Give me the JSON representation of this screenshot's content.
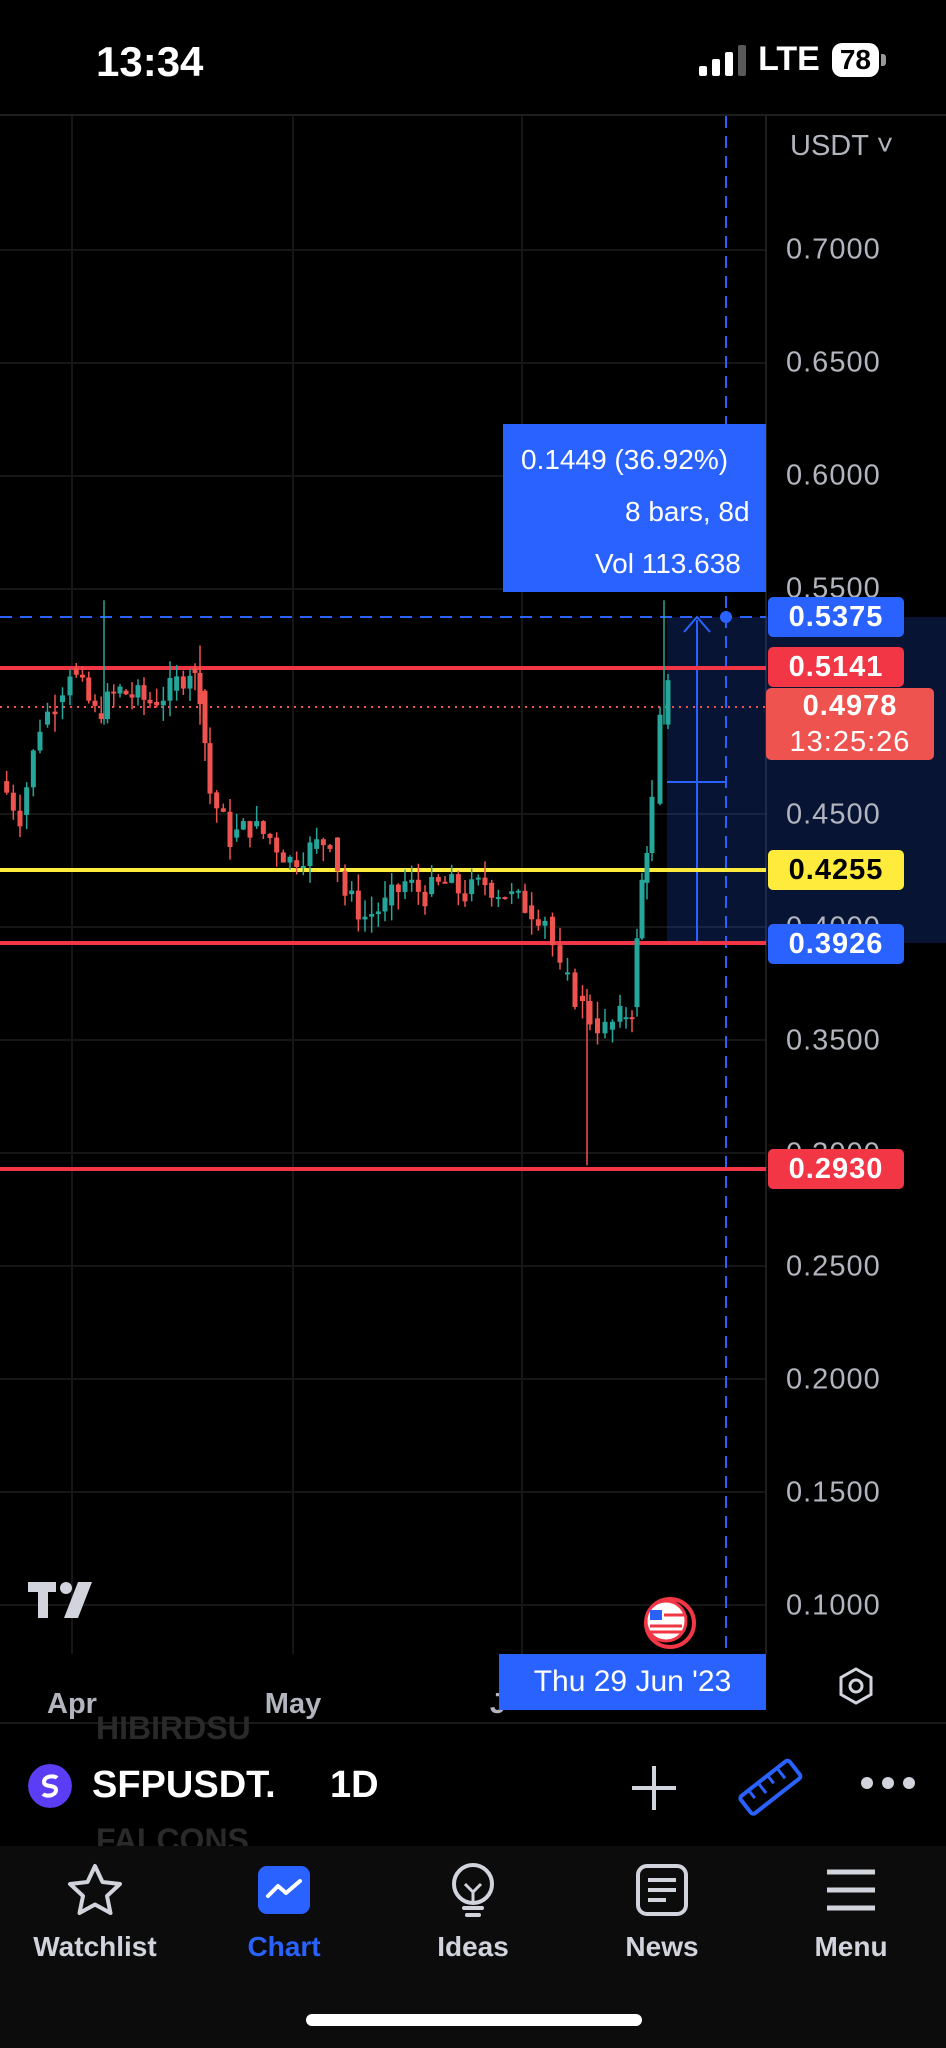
{
  "status_bar": {
    "time": "13:34",
    "network": "LTE",
    "battery": "78"
  },
  "chart": {
    "currency": "USDT",
    "price_axis": [
      "0.7000",
      "0.6500",
      "0.6000",
      "0.5500",
      "0.4500",
      "0.4000",
      "0.3500",
      "0.3000",
      "0.2500",
      "0.2000",
      "0.1500",
      "0.1000"
    ],
    "levels": {
      "measure_top": "0.5375",
      "resistance": "0.5141",
      "last_price": "0.4978",
      "countdown": "13:25:26",
      "yellow_line": "0.4255",
      "measure_bottom": "0.3926",
      "support": "0.2930"
    },
    "measure_tooltip": {
      "change": "0.1449 (36.92%)",
      "bars": "8 bars, 8d",
      "volume": "Vol 113.638"
    },
    "time_axis": {
      "months": [
        "Apr",
        "May",
        "J"
      ],
      "crosshair_date": "Thu 29 Jun '23"
    },
    "colors": {
      "up": "#26a69a",
      "down": "#ef5350",
      "accent": "#2962ff",
      "yellow": "#ffeb3b",
      "red_line": "#f23645"
    }
  },
  "symbol_bar": {
    "symbol": "SFPUSDT.",
    "timeframe": "1D",
    "ghost_above": "HIBIRDSU",
    "ghost_below": "FALCONS"
  },
  "nav": {
    "items": [
      {
        "label": "Watchlist",
        "icon": "star-icon"
      },
      {
        "label": "Chart",
        "icon": "chart-icon"
      },
      {
        "label": "Ideas",
        "icon": "lightbulb-icon"
      },
      {
        "label": "News",
        "icon": "news-icon"
      },
      {
        "label": "Menu",
        "icon": "menu-icon"
      }
    ],
    "active": "Chart"
  }
}
